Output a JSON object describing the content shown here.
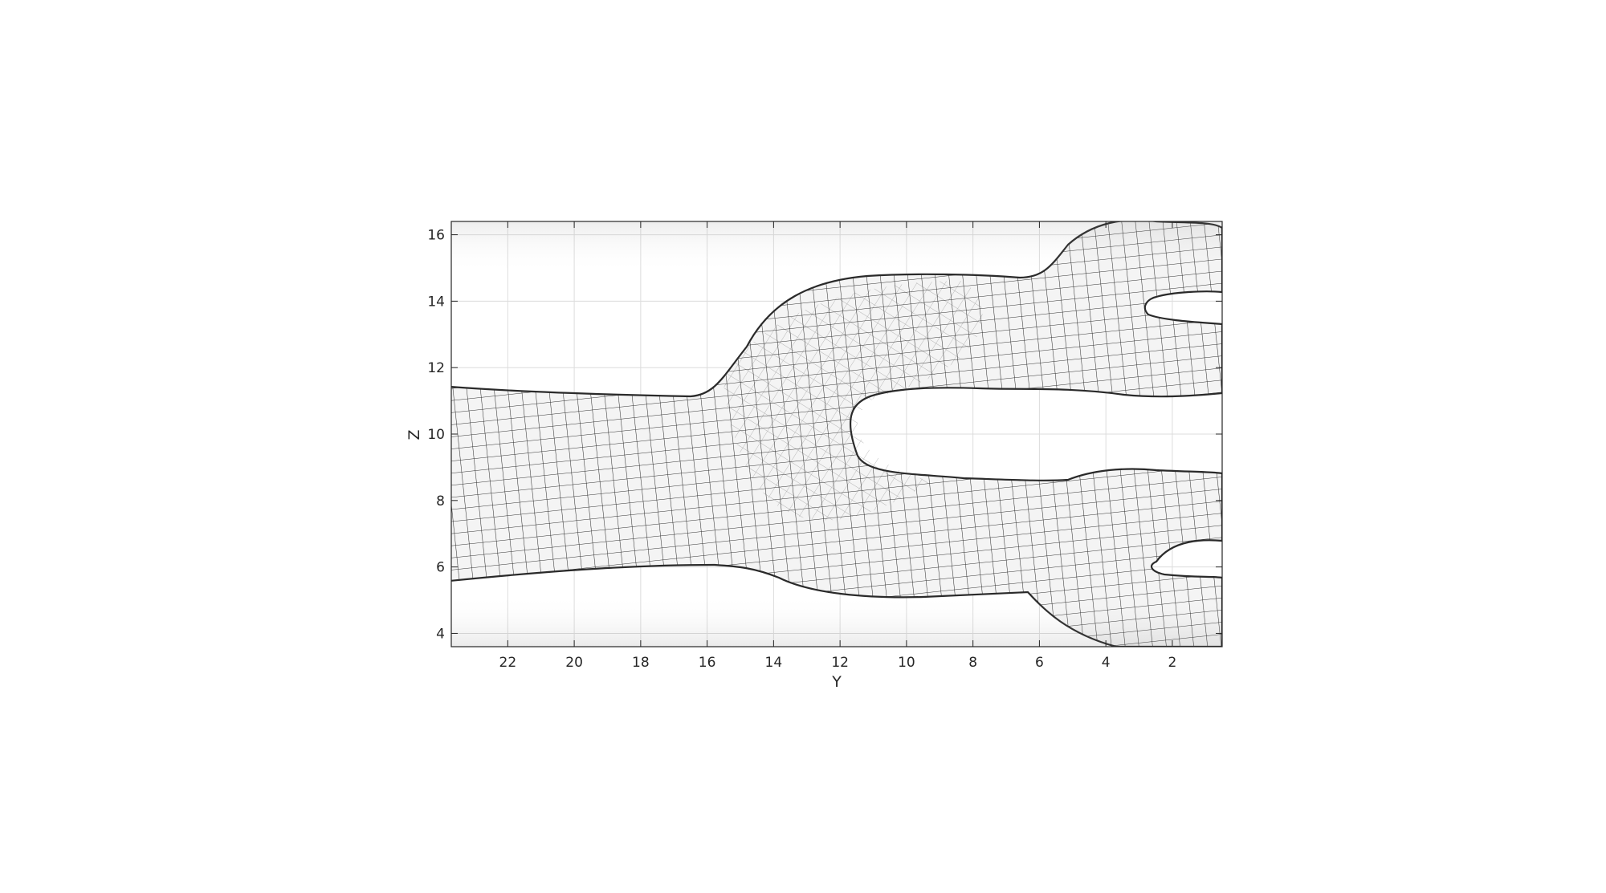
{
  "chart_data": {
    "type": "surface-mesh",
    "view": "Y-Z projection, Y axis reversed",
    "xlabel": "Y",
    "ylabel": "Z",
    "xlim": [
      0.5,
      23.7
    ],
    "ylim": [
      3.6,
      16.4
    ],
    "x_reversed": true,
    "x_ticks": [
      "22",
      "20",
      "18",
      "16",
      "14",
      "12",
      "10",
      "8",
      "6",
      "4",
      "2"
    ],
    "x_tick_values": [
      22,
      20,
      18,
      16,
      14,
      12,
      10,
      8,
      6,
      4,
      2
    ],
    "y_ticks": [
      "16",
      "14",
      "12",
      "10",
      "8",
      "6",
      "4"
    ],
    "y_tick_values": [
      16,
      14,
      12,
      10,
      8,
      6,
      4
    ],
    "grid": true,
    "surface": {
      "description": "quadrilateral surface mesh of a branching vessel: trunk splits near Y=12 into upper and lower branches, each splitting again near Y=3",
      "face_color": "#f2f2f2",
      "edge_color": "#2a2a2a",
      "shade_color": "#9a9a9a"
    }
  }
}
